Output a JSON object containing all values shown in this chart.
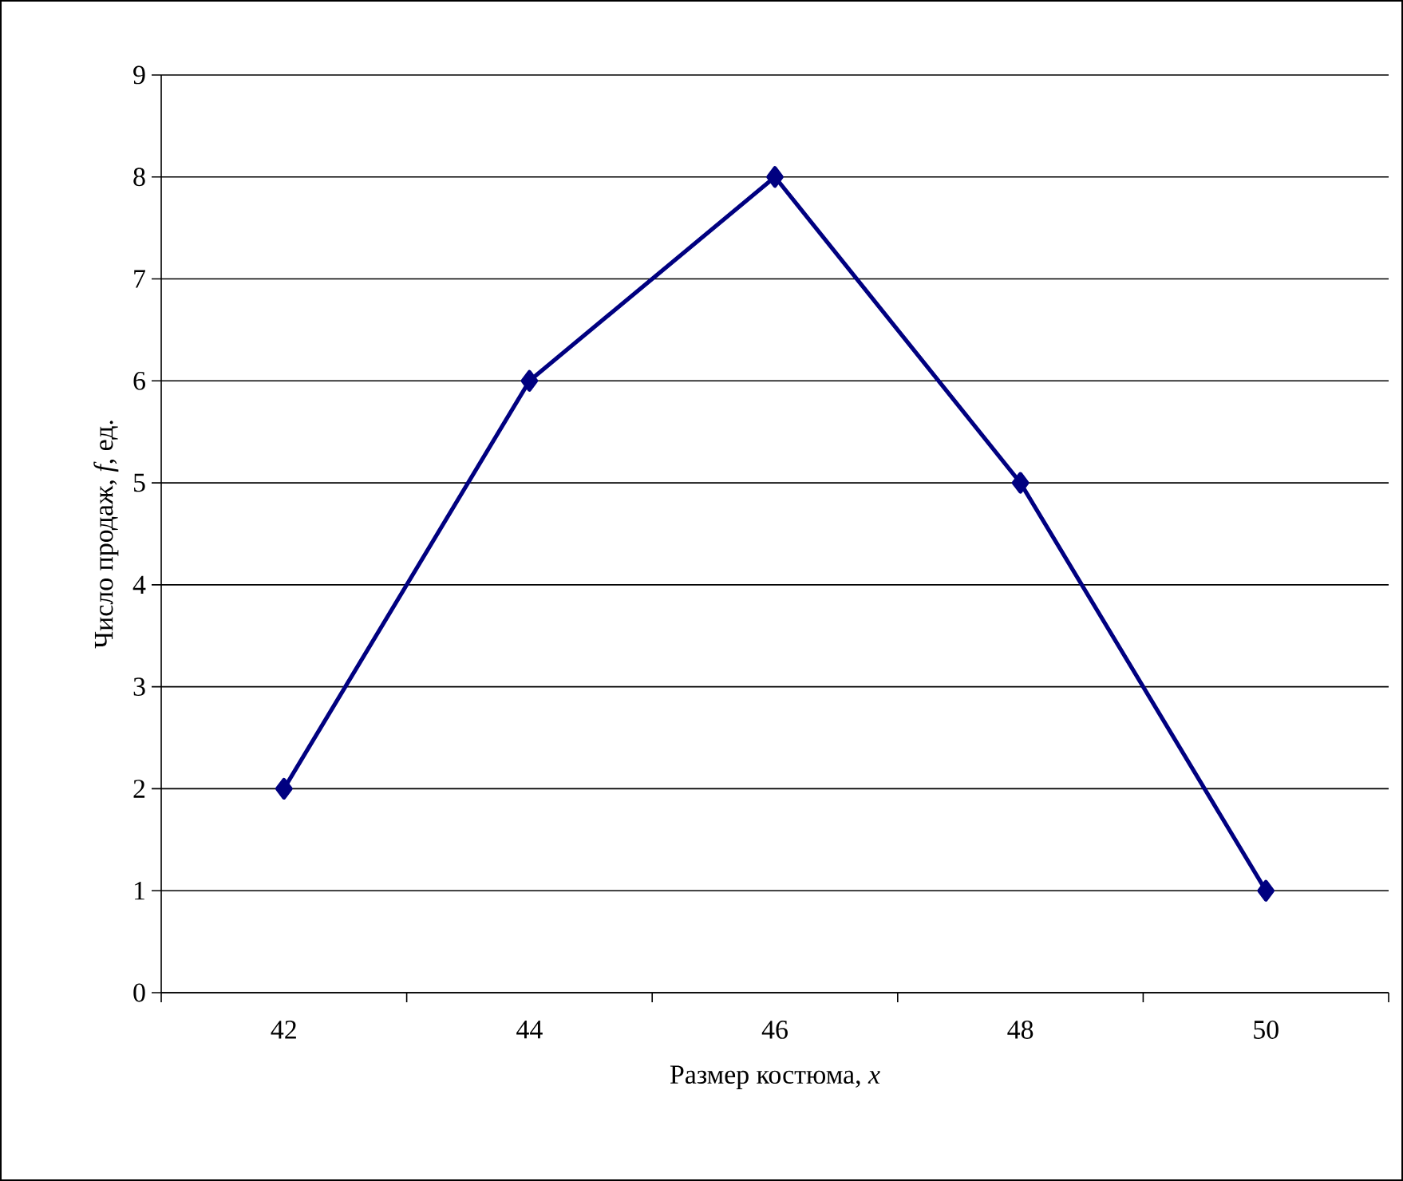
{
  "chart_data": {
    "type": "line",
    "xlabel": "Размер костюма, *x*",
    "ylabel": "Число продаж, *f*, ед.",
    "categories": [
      "42",
      "44",
      "46",
      "48",
      "50"
    ],
    "values": [
      2,
      6,
      8,
      5,
      1
    ],
    "color": "#000080",
    "ylim": [
      0,
      9
    ],
    "yticks": [
      0,
      1,
      2,
      3,
      4,
      5,
      6,
      7,
      8,
      9
    ],
    "grid": "y",
    "marker": "diamond",
    "line_style": "solid"
  }
}
